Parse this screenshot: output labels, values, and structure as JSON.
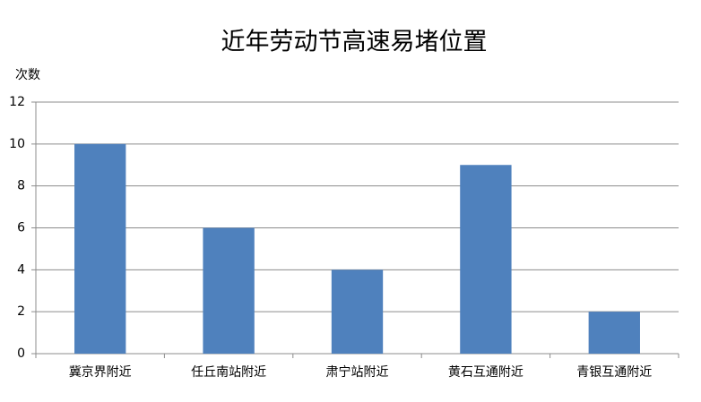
{
  "chart_data": {
    "type": "bar",
    "title": "近年劳动节高速易堵位置",
    "y_label": "次数",
    "categories": [
      "冀京界附近",
      "任丘南站附近",
      "肃宁站附近",
      "黄石互通附近",
      "青银互通附近"
    ],
    "values": [
      10,
      6,
      4,
      9,
      2
    ],
    "color": "#4f81bd",
    "ylim": [
      0,
      12
    ],
    "yticks": [
      0,
      2,
      4,
      6,
      8,
      10,
      12
    ],
    "grid": true
  }
}
